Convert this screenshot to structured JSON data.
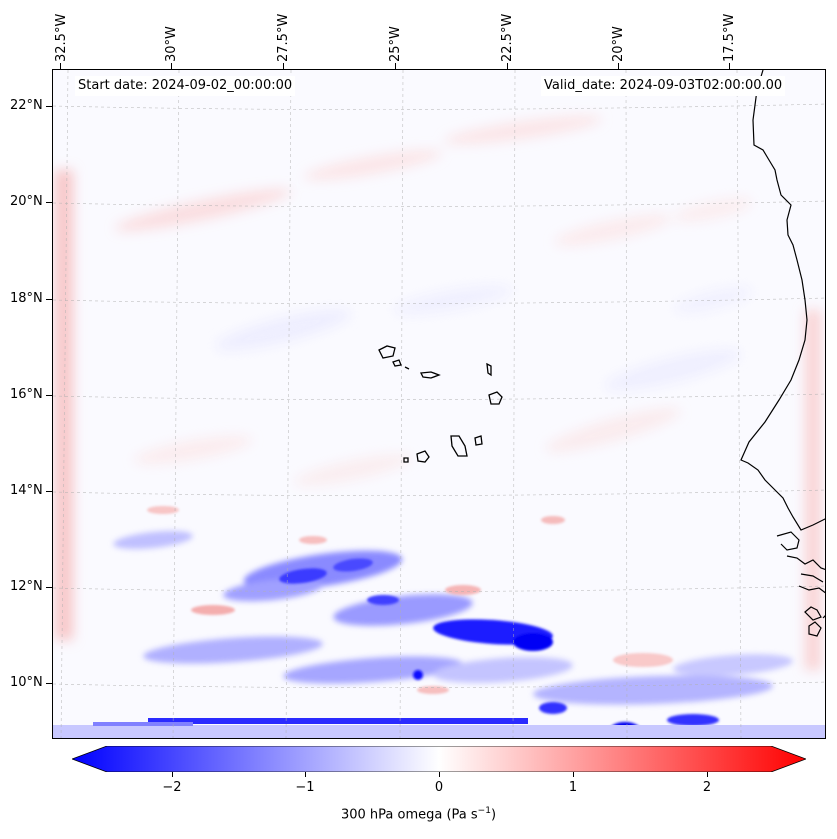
{
  "header": {
    "start_date": "Start date: 2024-09-02_00:00:00",
    "valid_date": "Valid_date: 2024-09-03T02:00:00.00"
  },
  "axes": {
    "lon_labels": [
      "32.5°W",
      "30°W",
      "27.5°W",
      "25°W",
      "22.5°W",
      "20°W",
      "17.5°W"
    ],
    "lat_labels": [
      "22°N",
      "20°N",
      "18°N",
      "16°N",
      "14°N",
      "12°N",
      "10°N"
    ]
  },
  "colorbar": {
    "ticks": [
      "−2",
      "−1",
      "0",
      "1",
      "2"
    ],
    "label_main": "300 hPa omega (Pa s",
    "label_exp": "−1",
    "label_end": ")",
    "min": -2.6,
    "max": 2.6,
    "colormap": "bwr",
    "color_low": "#0000ff",
    "color_mid": "#ffffff",
    "color_high": "#ff0000"
  },
  "map": {
    "variable": "300 hPa omega",
    "region": "Cabo Verde / West African coast",
    "coastline_color": "#000000"
  }
}
